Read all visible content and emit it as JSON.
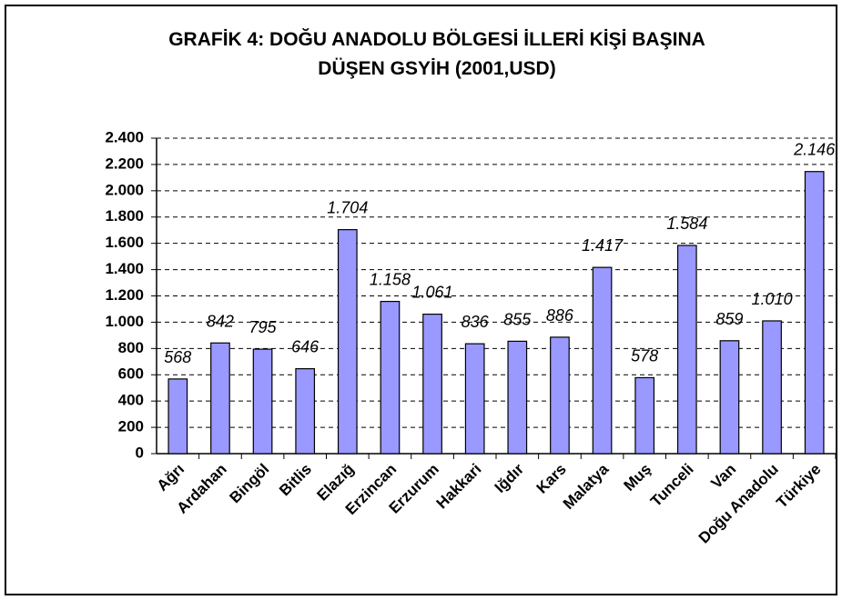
{
  "chart_data": {
    "type": "bar",
    "title": [
      "GRAFİK 4: DOĞU ANADOLU BÖLGESİ İLLERİ KİŞİ BAŞINA",
      "DÜŞEN GSYİH (2001,USD)"
    ],
    "categories": [
      "Ağrı",
      "Ardahan",
      "Bingöl",
      "Bitlis",
      "Elazığ",
      "Erzincan",
      "Erzurum",
      "Hakkari",
      "Iğdır",
      "Kars",
      "Malatya",
      "Muş",
      "Tunceli",
      "Van",
      "Doğu Anadolu",
      "Türkiye"
    ],
    "values": [
      568,
      842,
      795,
      646,
      1704,
      1158,
      1061,
      836,
      855,
      886,
      1417,
      578,
      1584,
      859,
      1010,
      2146
    ],
    "value_labels": [
      "568",
      "842",
      "795",
      "646",
      "1.704",
      "1.158",
      "1.061",
      "836",
      "855",
      "886",
      "1.417",
      "578",
      "1.584",
      "859",
      "1.010",
      "2.146"
    ],
    "color": "#9999ff",
    "ylim": [
      0,
      2400
    ],
    "yticks": [
      0,
      200,
      400,
      600,
      800,
      {
        "value": 1000,
        "label": "1.000"
      },
      {
        "value": 1200,
        "label": "1.200"
      },
      {
        "value": 1400,
        "label": "1.400"
      },
      {
        "value": 1600,
        "label": "1.600"
      },
      {
        "value": 1800,
        "label": "1.800"
      },
      {
        "value": 2000,
        "label": "2.000"
      },
      {
        "value": 2200,
        "label": "2.200"
      },
      {
        "value": 2400,
        "label": "2.400"
      }
    ],
    "grid": true
  }
}
